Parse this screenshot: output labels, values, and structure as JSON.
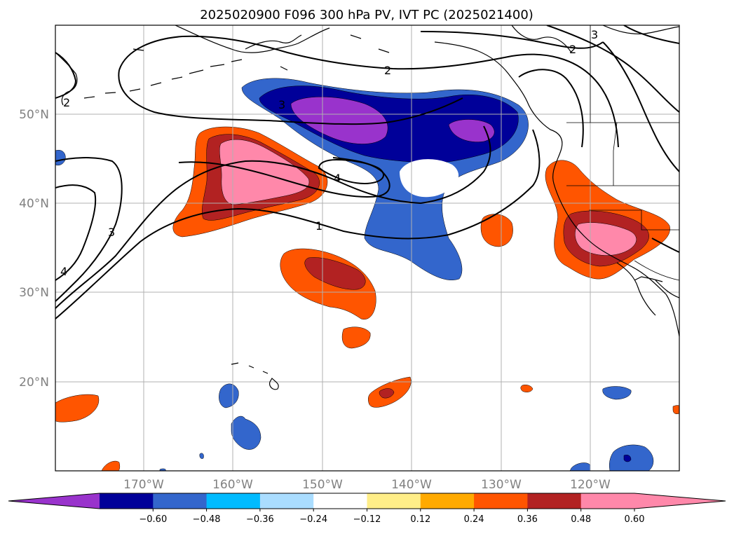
{
  "title": "2025020900 F096 300 hPa PV, IVT PC (2025021400)",
  "lat_labels": [
    "50°N",
    "40°N",
    "30°N",
    "20°N"
  ],
  "lon_labels": [
    "170°W",
    "160°W",
    "150°W",
    "140°W",
    "130°W",
    "120°W"
  ],
  "contour_labels": [
    "3",
    "2",
    "3",
    "2",
    "4",
    "1",
    "3",
    "4",
    "2"
  ],
  "colorbar": {
    "ticks": [
      "−0.60",
      "−0.48",
      "−0.36",
      "−0.24",
      "−0.12",
      "0.12",
      "0.24",
      "0.36",
      "0.48",
      "0.60"
    ],
    "colors": [
      "#9933cc",
      "#000099",
      "#3366cc",
      "#00bbff",
      "#aaddff",
      "#ffffff",
      "#ffee88",
      "#ffaa00",
      "#ff5500",
      "#b22222",
      "#ff88aa",
      "#ff88aa"
    ]
  },
  "fill_colors": {
    "purple": "#9933cc",
    "navy": "#000099",
    "blue": "#3366cc",
    "cyan": "#00bbff",
    "yellow": "#ffee88",
    "orange": "#ff5500",
    "red": "#b22222",
    "pink": "#ff88aa"
  }
}
